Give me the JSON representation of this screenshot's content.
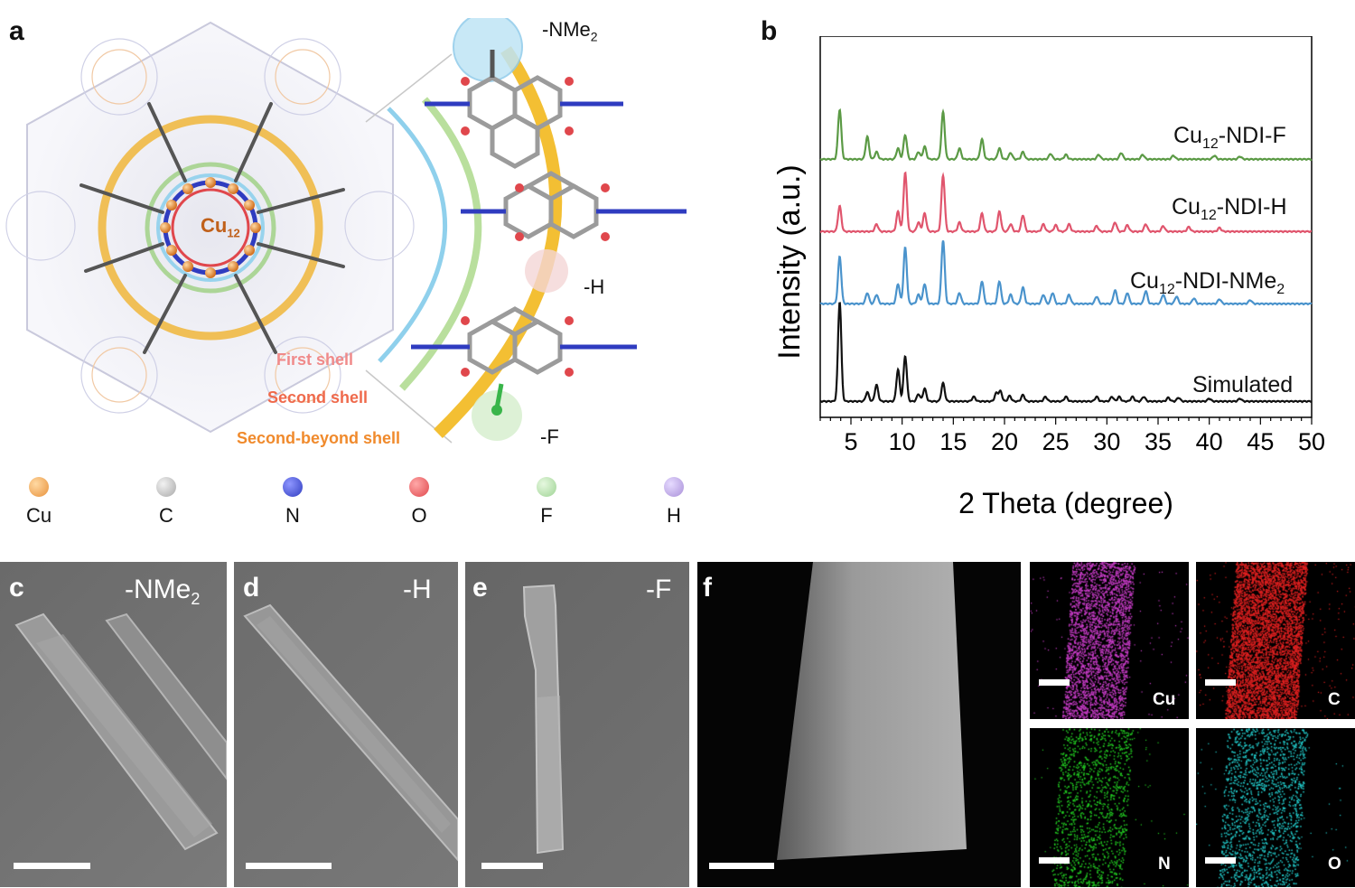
{
  "panels": {
    "a": "a",
    "b": "b",
    "c": "c",
    "d": "d",
    "e": "e",
    "f": "f"
  },
  "panel_a": {
    "core_label": "Cu",
    "core_sub": "12",
    "substituents": [
      {
        "label": "-NMe",
        "sub": "2"
      },
      {
        "label": "-H",
        "sub": ""
      },
      {
        "label": "-F",
        "sub": ""
      }
    ],
    "shells": [
      "First  shell",
      "Second shell",
      "Second-beyond shell"
    ],
    "legend": [
      {
        "label": "Cu",
        "color": "#e8913a"
      },
      {
        "label": "C",
        "color": "#b8b8b8"
      },
      {
        "label": "N",
        "color": "#2f3cc0"
      },
      {
        "label": "O",
        "color": "#e0474c"
      },
      {
        "label": "F",
        "color": "#a8dca0"
      },
      {
        "label": "H",
        "color": "#a98fd8"
      }
    ]
  },
  "panel_c": {
    "label": "-NMe",
    "sub": "2"
  },
  "panel_d": {
    "label": "-H"
  },
  "panel_e": {
    "label": "-F"
  },
  "panel_f": {
    "maps": [
      {
        "label": "Cu",
        "color": "#c83cc8"
      },
      {
        "label": "C",
        "color": "#e02020"
      },
      {
        "label": "N",
        "color": "#22cc22"
      },
      {
        "label": "O",
        "color": "#22cccc"
      }
    ]
  },
  "chart_data": {
    "type": "line",
    "xlabel": "2 Theta (degree)",
    "ylabel": "Intensity (a.u.)",
    "xlim": [
      2,
      50
    ],
    "xticks": [
      5,
      10,
      15,
      20,
      25,
      30,
      35,
      40,
      45,
      50
    ],
    "yticks_shown": false,
    "series": [
      {
        "name": "Cu12-NDI-F",
        "label_main": "Cu",
        "label_sub": "12",
        "label_rest": "-NDI-F",
        "color": "#5b9a45",
        "peaks": [
          [
            3.9,
            55
          ],
          [
            6.6,
            25
          ],
          [
            7.5,
            8
          ],
          [
            9.6,
            12
          ],
          [
            10.3,
            27
          ],
          [
            11.6,
            8
          ],
          [
            12.2,
            14
          ],
          [
            14.0,
            52
          ],
          [
            15.6,
            12
          ],
          [
            17.8,
            22
          ],
          [
            19.5,
            12
          ],
          [
            20.6,
            7
          ],
          [
            21.8,
            8
          ],
          [
            24.5,
            6
          ],
          [
            26.0,
            5
          ],
          [
            29.2,
            5
          ],
          [
            31.4,
            7
          ],
          [
            33.5,
            5
          ],
          [
            36.5,
            4
          ],
          [
            40.5,
            4
          ],
          [
            43.0,
            3
          ]
        ]
      },
      {
        "name": "Cu12-NDI-H",
        "label_main": "Cu",
        "label_sub": "12",
        "label_rest": "-NDI-H",
        "color": "#e0556d",
        "peaks": [
          [
            3.9,
            28
          ],
          [
            7.5,
            8
          ],
          [
            9.6,
            22
          ],
          [
            10.3,
            65
          ],
          [
            11.6,
            10
          ],
          [
            12.2,
            20
          ],
          [
            14.0,
            62
          ],
          [
            15.6,
            10
          ],
          [
            17.8,
            20
          ],
          [
            19.5,
            22
          ],
          [
            20.6,
            8
          ],
          [
            21.8,
            18
          ],
          [
            23.8,
            8
          ],
          [
            25.0,
            7
          ],
          [
            26.3,
            8
          ],
          [
            29.0,
            6
          ],
          [
            30.8,
            10
          ],
          [
            32.0,
            7
          ],
          [
            33.8,
            8
          ],
          [
            35.5,
            6
          ],
          [
            38.0,
            5
          ],
          [
            41.0,
            4
          ]
        ]
      },
      {
        "name": "Cu12-NDI-NMe2",
        "label_main": "Cu",
        "label_sub": "12",
        "label_rest": "-NDI-NMe",
        "label_sub2": "2",
        "color": "#4a93cc",
        "peaks": [
          [
            3.9,
            52
          ],
          [
            6.6,
            12
          ],
          [
            7.5,
            10
          ],
          [
            9.6,
            22
          ],
          [
            10.3,
            62
          ],
          [
            11.6,
            10
          ],
          [
            12.2,
            22
          ],
          [
            14.0,
            70
          ],
          [
            15.6,
            12
          ],
          [
            17.8,
            25
          ],
          [
            19.5,
            25
          ],
          [
            20.6,
            10
          ],
          [
            21.8,
            18
          ],
          [
            23.8,
            10
          ],
          [
            24.7,
            12
          ],
          [
            26.3,
            10
          ],
          [
            29.0,
            8
          ],
          [
            30.8,
            15
          ],
          [
            32.0,
            12
          ],
          [
            33.8,
            14
          ],
          [
            35.5,
            10
          ],
          [
            36.8,
            8
          ],
          [
            38.5,
            6
          ],
          [
            41.0,
            5
          ],
          [
            44.0,
            4
          ]
        ]
      },
      {
        "name": "Simulated",
        "label_main": "Simulated",
        "color": "#111111",
        "peaks": [
          [
            3.9,
            110
          ],
          [
            6.6,
            10
          ],
          [
            7.5,
            18
          ],
          [
            9.6,
            35
          ],
          [
            10.3,
            50
          ],
          [
            11.6,
            8
          ],
          [
            12.2,
            14
          ],
          [
            14.0,
            20
          ],
          [
            17.0,
            5
          ],
          [
            19.2,
            9
          ],
          [
            19.6,
            11
          ],
          [
            20.5,
            6
          ],
          [
            21.8,
            7
          ],
          [
            24.0,
            5
          ],
          [
            26.0,
            5
          ],
          [
            29.0,
            5
          ],
          [
            30.5,
            5
          ],
          [
            31.2,
            5
          ],
          [
            32.5,
            5
          ],
          [
            33.6,
            5
          ],
          [
            36.0,
            4
          ],
          [
            37.0,
            4
          ],
          [
            40.0,
            3
          ],
          [
            43.0,
            3
          ]
        ]
      }
    ]
  }
}
